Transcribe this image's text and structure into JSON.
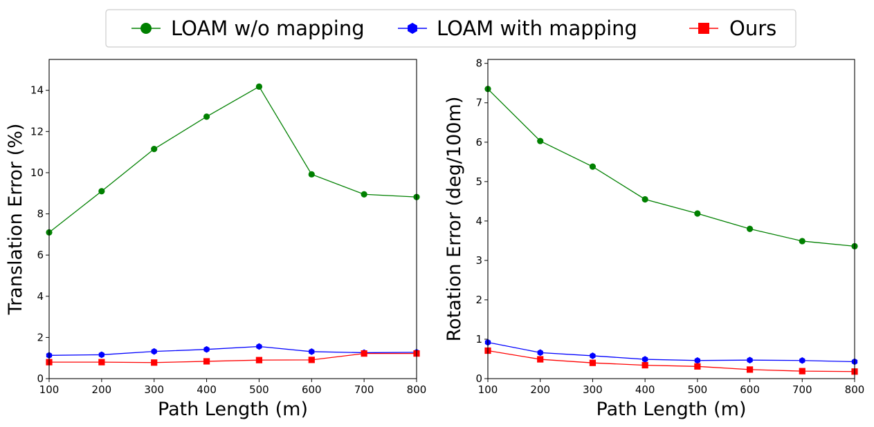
{
  "legend": {
    "placement": "top-center",
    "items": [
      {
        "label": "LOAM w/o mapping",
        "color": "#008000",
        "marker": "circle"
      },
      {
        "label": "LOAM with mapping",
        "color": "#0000ff",
        "marker": "hexagon"
      },
      {
        "label": "Ours",
        "color": "#ff0000",
        "marker": "square"
      }
    ]
  },
  "chart_data": [
    {
      "type": "line",
      "title": "",
      "xlabel": "Path Length (m)",
      "ylabel": "Translation Error (%)",
      "x": [
        100,
        200,
        300,
        400,
        500,
        600,
        700,
        800
      ],
      "xlim": [
        100,
        800
      ],
      "ylim": [
        0,
        15.5
      ],
      "xticks": [
        100,
        200,
        300,
        400,
        500,
        600,
        700,
        800
      ],
      "yticks": [
        0,
        2,
        4,
        6,
        8,
        10,
        12,
        14
      ],
      "grid": false,
      "series": [
        {
          "name": "LOAM w/o mapping",
          "color": "#008000",
          "marker": "circle",
          "values": [
            7.1,
            9.1,
            11.15,
            12.72,
            14.18,
            9.92,
            8.95,
            8.82
          ]
        },
        {
          "name": "LOAM with mapping",
          "color": "#0000ff",
          "marker": "hexagon",
          "values": [
            1.13,
            1.16,
            1.32,
            1.42,
            1.56,
            1.31,
            1.26,
            1.28
          ]
        },
        {
          "name": "Ours",
          "color": "#ff0000",
          "marker": "square",
          "values": [
            0.8,
            0.8,
            0.78,
            0.84,
            0.9,
            0.91,
            1.22,
            1.22
          ]
        }
      ]
    },
    {
      "type": "line",
      "title": "",
      "xlabel": "Path Length (m)",
      "ylabel": "Rotation Error (deg/100m)",
      "x": [
        100,
        200,
        300,
        400,
        500,
        600,
        700,
        800
      ],
      "xlim": [
        100,
        800
      ],
      "ylim": [
        0,
        8.1
      ],
      "xticks": [
        100,
        200,
        300,
        400,
        500,
        600,
        700,
        800
      ],
      "yticks": [
        0,
        1,
        2,
        3,
        4,
        5,
        6,
        7,
        8
      ],
      "grid": false,
      "series": [
        {
          "name": "LOAM w/o mapping",
          "color": "#008000",
          "marker": "circle",
          "values": [
            7.35,
            6.03,
            5.38,
            4.55,
            4.19,
            3.8,
            3.49,
            3.36
          ]
        },
        {
          "name": "LOAM with mapping",
          "color": "#0000ff",
          "marker": "hexagon",
          "values": [
            0.92,
            0.66,
            0.58,
            0.49,
            0.46,
            0.47,
            0.46,
            0.43
          ]
        },
        {
          "name": "Ours",
          "color": "#ff0000",
          "marker": "square",
          "values": [
            0.71,
            0.49,
            0.4,
            0.34,
            0.31,
            0.23,
            0.19,
            0.18
          ]
        }
      ]
    }
  ]
}
